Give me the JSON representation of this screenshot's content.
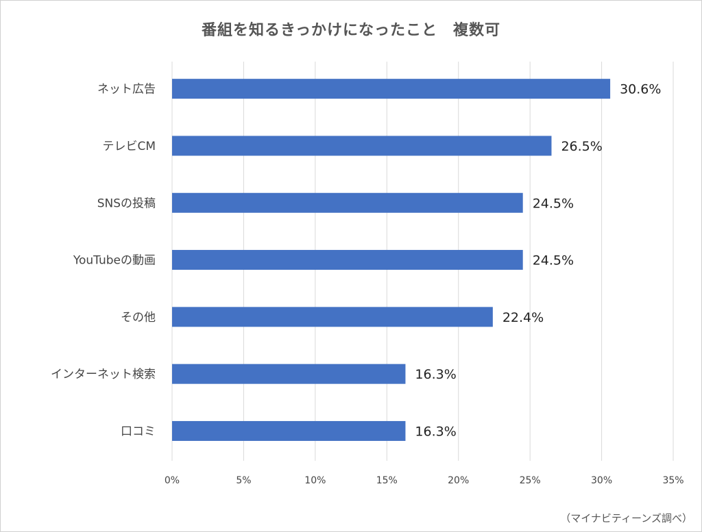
{
  "chart_data": {
    "type": "bar",
    "orientation": "horizontal",
    "title": "番組を知るきっかけになったこと　複数可",
    "categories": [
      "ネット広告",
      "テレビCM",
      "SNSの投稿",
      "YouTubeの動画",
      "その他",
      "インターネット検索",
      "口コミ"
    ],
    "values": [
      30.6,
      26.5,
      24.5,
      24.5,
      22.4,
      16.3,
      16.3
    ],
    "data_labels": [
      "30.6%",
      "26.5%",
      "24.5%",
      "24.5%",
      "22.4%",
      "16.3%",
      "16.3%"
    ],
    "xlim": [
      0,
      35
    ],
    "x_ticks": [
      0,
      5,
      10,
      15,
      20,
      25,
      30,
      35
    ],
    "x_tick_labels": [
      "0%",
      "5%",
      "10%",
      "15%",
      "20%",
      "25%",
      "30%",
      "35%"
    ],
    "bar_color": "#4472c4",
    "grid": true,
    "legend": "none"
  },
  "source_note": "（マイナビティーンズ調べ）"
}
